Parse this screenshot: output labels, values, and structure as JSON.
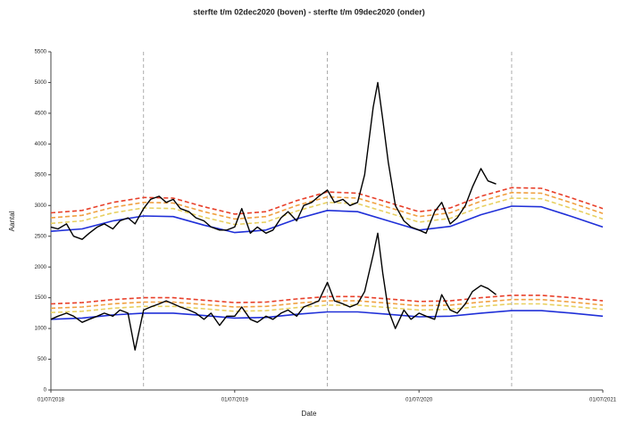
{
  "chart_data": {
    "type": "line",
    "title": "sterfte t/m 02dec2020 (boven) - sterfte t/m 09dec2020 (onder)",
    "xlabel": "Date",
    "ylabel": "Aantal",
    "xlim": [
      "2018-07-01",
      "2021-07-01"
    ],
    "xticks": [
      {
        "value": "2018-07-01",
        "label": "01/07/2018"
      },
      {
        "value": "2019-07-01",
        "label": "01/07/2019"
      },
      {
        "value": "2020-07-01",
        "label": "01/07/2020"
      },
      {
        "value": "2021-07-01",
        "label": "01/07/2021"
      }
    ],
    "vlines": [
      "2019-01-01",
      "2020-01-01",
      "2021-01-01"
    ],
    "ylim": [
      0,
      5500
    ],
    "yticks": [
      0,
      500,
      1000,
      1500,
      2000,
      2500,
      3000,
      3500,
      4000,
      4500,
      5000,
      5500
    ],
    "x": [
      "2018-07-01",
      "2018-07-15",
      "2018-08-01",
      "2018-08-15",
      "2018-09-01",
      "2018-09-15",
      "2018-10-01",
      "2018-10-15",
      "2018-11-01",
      "2018-11-15",
      "2018-12-01",
      "2018-12-15",
      "2019-01-01",
      "2019-01-15",
      "2019-02-01",
      "2019-02-15",
      "2019-03-01",
      "2019-03-15",
      "2019-04-01",
      "2019-04-15",
      "2019-05-01",
      "2019-05-15",
      "2019-06-01",
      "2019-06-15",
      "2019-07-01",
      "2019-07-15",
      "2019-08-01",
      "2019-08-15",
      "2019-09-01",
      "2019-09-15",
      "2019-10-01",
      "2019-10-15",
      "2019-11-01",
      "2019-11-15",
      "2019-12-01",
      "2019-12-15",
      "2020-01-01",
      "2020-01-15",
      "2020-02-01",
      "2020-02-15",
      "2020-03-01",
      "2020-03-15",
      "2020-04-01",
      "2020-04-10",
      "2020-04-20",
      "2020-05-01",
      "2020-05-15",
      "2020-06-01",
      "2020-06-15",
      "2020-07-01",
      "2020-07-15",
      "2020-08-01",
      "2020-08-15",
      "2020-09-01",
      "2020-09-15",
      "2020-10-01",
      "2020-10-15",
      "2020-11-01",
      "2020-11-15",
      "2020-12-01"
    ],
    "series": [
      {
        "color": "#2030d8",
        "style": "solid",
        "x": [
          "2018-07-01",
          "2018-09-01",
          "2018-11-01",
          "2019-01-01",
          "2019-03-01",
          "2019-05-01",
          "2019-07-01",
          "2019-09-01",
          "2019-11-01",
          "2020-01-01",
          "2020-03-01",
          "2020-05-01",
          "2020-07-01",
          "2020-09-01",
          "2020-11-01",
          "2021-01-01",
          "2021-03-01",
          "2021-05-01",
          "2021-07-01"
        ],
        "values": [
          2580,
          2620,
          2750,
          2830,
          2820,
          2680,
          2560,
          2600,
          2780,
          2920,
          2900,
          2750,
          2600,
          2660,
          2850,
          2990,
          2980,
          2820,
          2650
        ]
      },
      {
        "color": "#e8d060",
        "style": "dashed",
        "x": [
          "2018-07-01",
          "2018-09-01",
          "2018-11-01",
          "2019-01-01",
          "2019-03-01",
          "2019-05-01",
          "2019-07-01",
          "2019-09-01",
          "2019-11-01",
          "2020-01-01",
          "2020-03-01",
          "2020-05-01",
          "2020-07-01",
          "2020-09-01",
          "2020-11-01",
          "2021-01-01",
          "2021-03-01",
          "2021-05-01",
          "2021-07-01"
        ],
        "values": [
          2710,
          2750,
          2880,
          2960,
          2950,
          2810,
          2690,
          2730,
          2910,
          3050,
          3030,
          2880,
          2730,
          2790,
          2980,
          3120,
          3110,
          2950,
          2780
        ]
      },
      {
        "color": "#f0a040",
        "style": "dashed",
        "x": [
          "2018-07-01",
          "2018-09-01",
          "2018-11-01",
          "2019-01-01",
          "2019-03-01",
          "2019-05-01",
          "2019-07-01",
          "2019-09-01",
          "2019-11-01",
          "2020-01-01",
          "2020-03-01",
          "2020-05-01",
          "2020-07-01",
          "2020-09-01",
          "2020-11-01",
          "2021-01-01",
          "2021-03-01",
          "2021-05-01",
          "2021-07-01"
        ],
        "values": [
          2800,
          2840,
          2970,
          3050,
          3040,
          2900,
          2780,
          2820,
          3000,
          3140,
          3120,
          2970,
          2820,
          2880,
          3070,
          3210,
          3200,
          3040,
          2870
        ]
      },
      {
        "color": "#e8402a",
        "style": "dashed",
        "x": [
          "2018-07-01",
          "2018-09-01",
          "2018-11-01",
          "2019-01-01",
          "2019-03-01",
          "2019-05-01",
          "2019-07-01",
          "2019-09-01",
          "2019-11-01",
          "2020-01-01",
          "2020-03-01",
          "2020-05-01",
          "2020-07-01",
          "2020-09-01",
          "2020-11-01",
          "2021-01-01",
          "2021-03-01",
          "2021-05-01",
          "2021-07-01"
        ],
        "values": [
          2880,
          2920,
          3050,
          3130,
          3120,
          2980,
          2860,
          2900,
          3080,
          3220,
          3200,
          3050,
          2900,
          2960,
          3150,
          3290,
          3280,
          3120,
          2950
        ]
      },
      {
        "color": "#000000",
        "style": "solid",
        "values": [
          2650,
          2620,
          2700,
          2500,
          2450,
          2550,
          2650,
          2700,
          2620,
          2750,
          2800,
          2700,
          2950,
          3100,
          3150,
          3050,
          3100,
          2950,
          2900,
          2800,
          2750,
          2650,
          2600,
          2600,
          2650,
          2950,
          2550,
          2650,
          2550,
          2600,
          2800,
          2900,
          2750,
          3000,
          3050,
          3150,
          3250,
          3050,
          3100,
          3000,
          3050,
          3500,
          4600,
          5000,
          4400,
          3700,
          3000,
          2750,
          2650,
          2600,
          2550,
          2900,
          3050,
          2700,
          2800,
          3000,
          3300,
          3600,
          3400,
          3350
        ]
      },
      {
        "color": "#2030d8",
        "style": "solid",
        "x": [
          "2018-07-01",
          "2018-09-01",
          "2018-11-01",
          "2019-01-01",
          "2019-03-01",
          "2019-05-01",
          "2019-07-01",
          "2019-09-01",
          "2019-11-01",
          "2020-01-01",
          "2020-03-01",
          "2020-05-01",
          "2020-07-01",
          "2020-09-01",
          "2020-11-01",
          "2021-01-01",
          "2021-03-01",
          "2021-05-01",
          "2021-07-01"
        ],
        "values": [
          1150,
          1170,
          1220,
          1250,
          1250,
          1210,
          1170,
          1180,
          1230,
          1270,
          1270,
          1230,
          1190,
          1200,
          1250,
          1290,
          1290,
          1250,
          1200
        ]
      },
      {
        "color": "#e8d060",
        "style": "dashed",
        "x": [
          "2018-07-01",
          "2018-09-01",
          "2018-11-01",
          "2019-01-01",
          "2019-03-01",
          "2019-05-01",
          "2019-07-01",
          "2019-09-01",
          "2019-11-01",
          "2020-01-01",
          "2020-03-01",
          "2020-05-01",
          "2020-07-01",
          "2020-09-01",
          "2020-11-01",
          "2021-01-01",
          "2021-03-01",
          "2021-05-01",
          "2021-07-01"
        ],
        "values": [
          1260,
          1280,
          1330,
          1360,
          1360,
          1320,
          1280,
          1290,
          1340,
          1380,
          1380,
          1340,
          1300,
          1310,
          1360,
          1400,
          1400,
          1360,
          1310
        ]
      },
      {
        "color": "#f0a040",
        "style": "dashed",
        "x": [
          "2018-07-01",
          "2018-09-01",
          "2018-11-01",
          "2019-01-01",
          "2019-03-01",
          "2019-05-01",
          "2019-07-01",
          "2019-09-01",
          "2019-11-01",
          "2020-01-01",
          "2020-03-01",
          "2020-05-01",
          "2020-07-01",
          "2020-09-01",
          "2020-11-01",
          "2021-01-01",
          "2021-03-01",
          "2021-05-01",
          "2021-07-01"
        ],
        "values": [
          1330,
          1350,
          1400,
          1430,
          1430,
          1390,
          1350,
          1360,
          1410,
          1450,
          1450,
          1410,
          1370,
          1380,
          1430,
          1470,
          1470,
          1430,
          1380
        ]
      },
      {
        "color": "#e8402a",
        "style": "dashed",
        "x": [
          "2018-07-01",
          "2018-09-01",
          "2018-11-01",
          "2019-01-01",
          "2019-03-01",
          "2019-05-01",
          "2019-07-01",
          "2019-09-01",
          "2019-11-01",
          "2020-01-01",
          "2020-03-01",
          "2020-05-01",
          "2020-07-01",
          "2020-09-01",
          "2020-11-01",
          "2021-01-01",
          "2021-03-01",
          "2021-05-01",
          "2021-07-01"
        ],
        "values": [
          1400,
          1420,
          1470,
          1500,
          1500,
          1460,
          1420,
          1430,
          1480,
          1520,
          1520,
          1480,
          1440,
          1450,
          1500,
          1540,
          1540,
          1500,
          1450
        ]
      },
      {
        "color": "#000000",
        "style": "solid",
        "values": [
          1150,
          1200,
          1250,
          1200,
          1100,
          1150,
          1200,
          1250,
          1200,
          1300,
          1250,
          650,
          1300,
          1350,
          1400,
          1450,
          1400,
          1350,
          1300,
          1250,
          1150,
          1250,
          1050,
          1200,
          1200,
          1350,
          1150,
          1100,
          1200,
          1150,
          1250,
          1300,
          1200,
          1350,
          1400,
          1450,
          1750,
          1450,
          1400,
          1350,
          1400,
          1600,
          2200,
          2550,
          1900,
          1300,
          1000,
          1300,
          1150,
          1250,
          1200,
          1150,
          1550,
          1300,
          1250,
          1400,
          1600,
          1700,
          1650,
          1550
        ]
      }
    ]
  }
}
